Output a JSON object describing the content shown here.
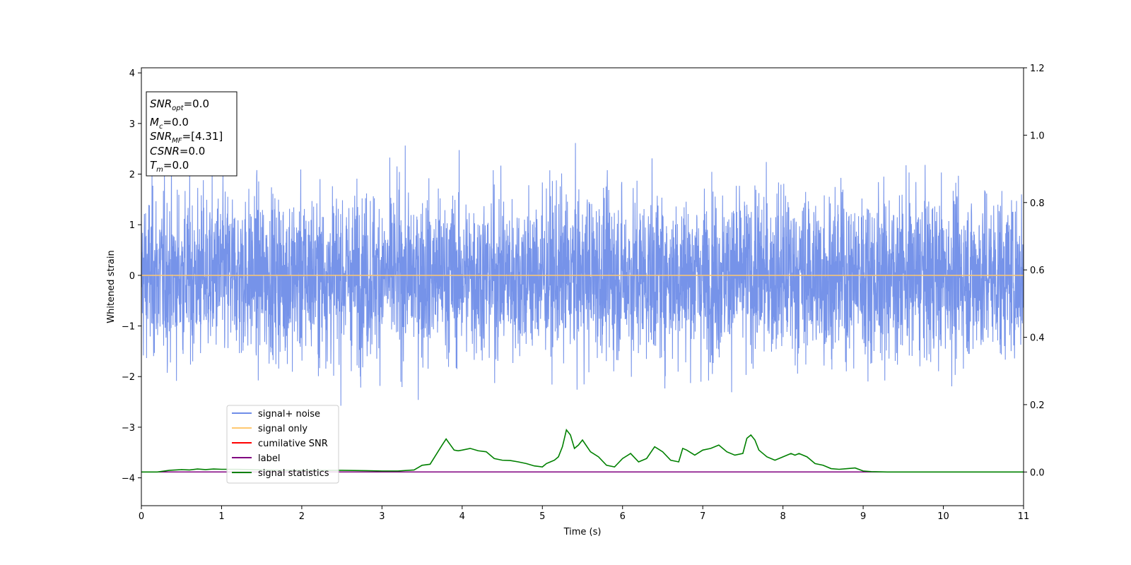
{
  "chart_data": {
    "type": "line",
    "xlabel": "Time (s)",
    "ylabel": "Whitened strain",
    "xlim": [
      0,
      11
    ],
    "ylim_left": [
      -4.55,
      4.1
    ],
    "ylim_right": [
      -0.1,
      1.2
    ],
    "x_ticks": [
      0,
      1,
      2,
      3,
      4,
      5,
      6,
      7,
      8,
      9,
      10,
      11
    ],
    "y_left_ticks": [
      -4,
      -3,
      -2,
      -1,
      0,
      1,
      2,
      3,
      4
    ],
    "y_right_ticks": [
      0.0,
      0.2,
      0.4,
      0.6,
      0.8,
      1.0,
      1.2
    ],
    "x_tick_labels": [
      "0",
      "1",
      "2",
      "3",
      "4",
      "5",
      "6",
      "7",
      "8",
      "9",
      "10",
      "11"
    ],
    "y_left_tick_labels": [
      "−4",
      "−3",
      "−2",
      "−1",
      "0",
      "1",
      "2",
      "3",
      "4"
    ],
    "y_right_tick_labels": [
      "0.0",
      "0.2",
      "0.4",
      "0.6",
      "0.8",
      "1.0",
      "1.2"
    ],
    "grid": false,
    "legend_position": "lower-left",
    "series": [
      {
        "name": "signal+ noise",
        "axis": "left",
        "color": "#6f8de8",
        "style": "noise",
        "amplitude_approx": 3.7
      },
      {
        "name": "signal only",
        "axis": "left",
        "color": "#ffc870",
        "values_constant": 0.0
      },
      {
        "name": "cumilative SNR",
        "axis": "right",
        "color": "#ff0000",
        "values_constant": 0.0
      },
      {
        "name": "label",
        "axis": "right",
        "color": "#800080",
        "values_constant": 0.0
      },
      {
        "name": "signal statistics",
        "axis": "right",
        "color": "#008000",
        "x": [
          0,
          0.2,
          0.35,
          0.5,
          0.6,
          0.7,
          0.8,
          0.9,
          1.0,
          1.2,
          1.5,
          1.8,
          2.0,
          2.2,
          2.5,
          2.8,
          3.0,
          3.2,
          3.4,
          3.5,
          3.6,
          3.65,
          3.75,
          3.8,
          3.9,
          3.95,
          4.0,
          4.1,
          4.2,
          4.3,
          4.4,
          4.5,
          4.6,
          4.7,
          4.8,
          4.9,
          5.0,
          5.05,
          5.1,
          5.15,
          5.2,
          5.25,
          5.3,
          5.35,
          5.4,
          5.45,
          5.5,
          5.6,
          5.7,
          5.8,
          5.9,
          6.0,
          6.1,
          6.2,
          6.3,
          6.4,
          6.5,
          6.6,
          6.7,
          6.75,
          6.8,
          6.9,
          7.0,
          7.1,
          7.2,
          7.3,
          7.4,
          7.5,
          7.55,
          7.6,
          7.65,
          7.7,
          7.8,
          7.9,
          8.0,
          8.1,
          8.15,
          8.2,
          8.3,
          8.4,
          8.5,
          8.6,
          8.7,
          8.8,
          8.9,
          9.0,
          9.1,
          9.3,
          9.5,
          9.8,
          10.0,
          10.5,
          11.0
        ],
        "values": [
          0.0,
          0.0,
          0.005,
          0.007,
          0.006,
          0.009,
          0.007,
          0.009,
          0.008,
          0.008,
          0.006,
          0.005,
          0.005,
          0.005,
          0.005,
          0.004,
          0.003,
          0.003,
          0.006,
          0.02,
          0.023,
          0.042,
          0.08,
          0.098,
          0.065,
          0.063,
          0.065,
          0.07,
          0.063,
          0.06,
          0.04,
          0.035,
          0.034,
          0.03,
          0.025,
          0.018,
          0.015,
          0.025,
          0.03,
          0.035,
          0.045,
          0.075,
          0.125,
          0.11,
          0.07,
          0.08,
          0.095,
          0.06,
          0.045,
          0.02,
          0.015,
          0.04,
          0.055,
          0.03,
          0.04,
          0.075,
          0.06,
          0.035,
          0.03,
          0.07,
          0.065,
          0.05,
          0.065,
          0.07,
          0.08,
          0.06,
          0.05,
          0.055,
          0.1,
          0.11,
          0.095,
          0.065,
          0.045,
          0.035,
          0.045,
          0.055,
          0.05,
          0.055,
          0.045,
          0.025,
          0.02,
          0.01,
          0.008,
          0.01,
          0.012,
          0.003,
          0.001,
          0.0,
          0.0,
          0.0,
          0.0,
          0.0,
          0.0
        ]
      }
    ]
  },
  "info_box": {
    "snr_opt": {
      "base": "SNR",
      "sub": "opt",
      "value": "=0.0"
    },
    "mc": {
      "base": "M",
      "sub": "c",
      "value": "=0.0"
    },
    "snr_mf": {
      "base": "SNR",
      "sub": "MF",
      "value": "=[4.31]"
    },
    "csnr": {
      "base": "CSNR",
      "sub": "",
      "value": "=0.0"
    },
    "tm": {
      "base": "T",
      "sub": "m",
      "value": "=0.0"
    }
  }
}
